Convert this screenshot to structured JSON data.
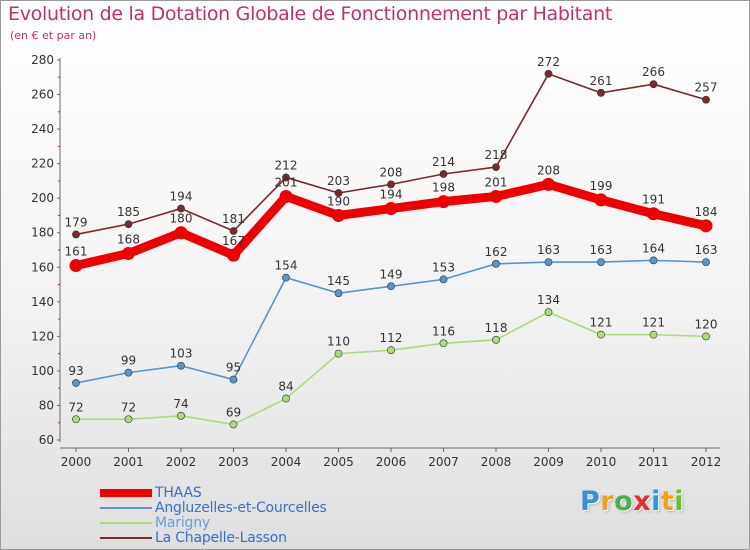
{
  "title": "Evolution de la Dotation Globale de Fonctionnement par Habitant",
  "subtitle": "(en € et par an)",
  "brand": {
    "letters": [
      "P",
      "r",
      "o",
      "x",
      "i",
      "t",
      "i"
    ],
    "colors": [
      "#3a8fd0",
      "#f0a020",
      "#4caf50",
      "#e03030",
      "#2a9ad8",
      "#f0a020",
      "#6cc02a"
    ]
  },
  "chart_data": {
    "type": "line",
    "title": "Evolution de la Dotation Globale de Fonctionnement par Habitant",
    "subtitle": "(en € et par an)",
    "xlabel": "",
    "ylabel": "",
    "x": [
      "2000",
      "2001",
      "2002",
      "2003",
      "2004",
      "2005",
      "2006",
      "2007",
      "2008",
      "2009",
      "2010",
      "2011",
      "2012"
    ],
    "ylim": [
      60,
      280
    ],
    "yticks": [
      "60",
      "80",
      "100",
      "120",
      "140",
      "160",
      "180",
      "200",
      "220",
      "240",
      "260",
      "280"
    ],
    "grid": false,
    "legend_position": "bottom-left",
    "series": [
      {
        "name": "La Chapelle-Lasson",
        "color": "#7a2a2a",
        "values": [
          179,
          185,
          194,
          181,
          212,
          203,
          208,
          214,
          218,
          272,
          261,
          266,
          257
        ]
      },
      {
        "name": "Angluzelles-et-Courcelles",
        "color": "#5a94c8",
        "values": [
          93,
          99,
          103,
          95,
          154,
          145,
          149,
          153,
          162,
          163,
          163,
          164,
          163
        ]
      },
      {
        "name": "Marigny",
        "color": "#a8dc7c",
        "values": [
          72,
          72,
          74,
          69,
          84,
          110,
          112,
          116,
          118,
          134,
          121,
          121,
          120
        ]
      },
      {
        "name": "THAAS",
        "color": "#ee0000",
        "values": [
          161,
          168,
          180,
          167,
          201,
          190,
          194,
          198,
          201,
          208,
          199,
          191,
          184
        ]
      }
    ]
  }
}
